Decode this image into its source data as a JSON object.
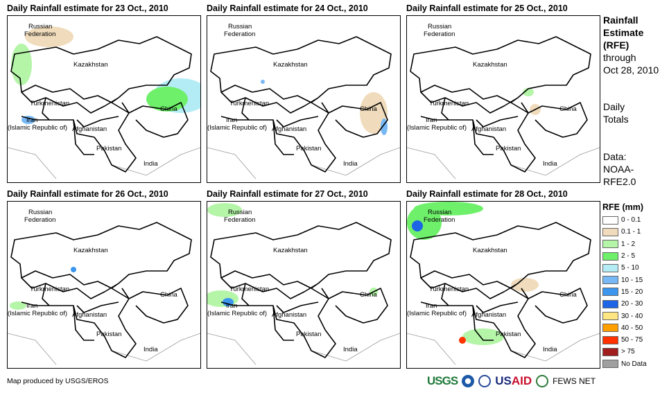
{
  "panels": [
    {
      "title": "Daily Rainfall estimate for 23 Oct., 2010"
    },
    {
      "title": "Daily Rainfall estimate for 24 Oct., 2010"
    },
    {
      "title": "Daily Rainfall estimate for 25 Oct., 2010"
    },
    {
      "title": "Daily Rainfall estimate for 26 Oct., 2010"
    },
    {
      "title": "Daily Rainfall estimate for 27 Oct., 2010"
    },
    {
      "title": "Daily Rainfall estimate for 28 Oct., 2010"
    }
  ],
  "map_labels": {
    "russia_1": "Russian",
    "russia_2": "Federation",
    "kazakhstan": "Kazakhstan",
    "turkmenistan": "Turkmenistan",
    "iran_1": "Iran",
    "iran_2": "(Islamic Republic of)",
    "afghanistan": "Afghanistan",
    "pakistan": "Pakistan",
    "india": "India",
    "china": "China"
  },
  "side": {
    "title_1": "Rainfall",
    "title_2": "Estimate",
    "title_3": "(RFE)",
    "through_1": "through",
    "through_2": "Oct 28, 2010",
    "totals_1": "Daily",
    "totals_2": "Totals",
    "data_1": "Data:",
    "data_2": "NOAA-",
    "data_3": "RFE2.0"
  },
  "legend": {
    "title": "RFE (mm)",
    "items": [
      {
        "label": "0 - 0.1",
        "color": "#ffffff"
      },
      {
        "label": "0.1 - 1",
        "color": "#f0dcbc"
      },
      {
        "label": "1 - 2",
        "color": "#b4f5a8"
      },
      {
        "label": "2 - 5",
        "color": "#6ef06a"
      },
      {
        "label": "5 - 10",
        "color": "#b4ecf5"
      },
      {
        "label": "10 - 15",
        "color": "#78b8f5"
      },
      {
        "label": "15 - 20",
        "color": "#3c96f0"
      },
      {
        "label": "20 - 30",
        "color": "#1e64e6"
      },
      {
        "label": "30 - 40",
        "color": "#ffe682"
      },
      {
        "label": "40 - 50",
        "color": "#ffa000"
      },
      {
        "label": "50 - 75",
        "color": "#ff3200"
      },
      {
        "label": "> 75",
        "color": "#a01e1e"
      },
      {
        "label": "No Data",
        "color": "#a0a0a0"
      }
    ]
  },
  "footer": {
    "credit": "Map produced by USGS/EROS",
    "usgs": "USGS",
    "usaid_1": "US",
    "usaid_2": "AID",
    "fews": "FEWS NET"
  }
}
